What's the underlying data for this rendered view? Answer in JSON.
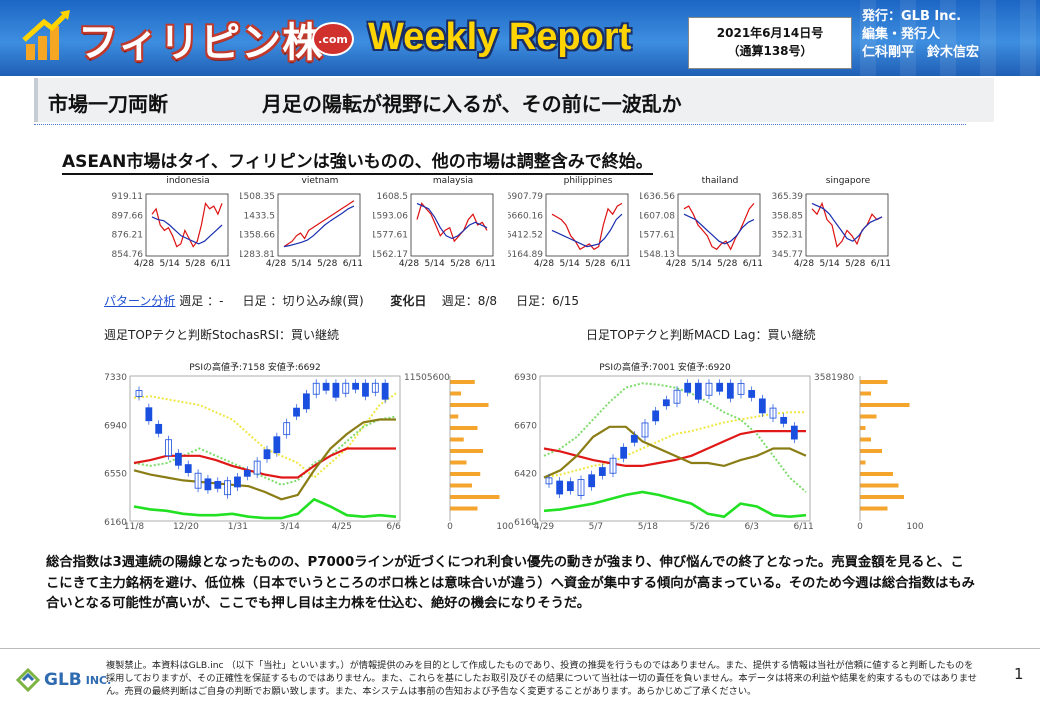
{
  "header": {
    "brand": "フィリピン株",
    "brand_badge": ".com",
    "report_title": "Weekly Report",
    "date_line1": "2021年6月14日号",
    "date_line2": "（通算138号）",
    "publisher_line1": "発行：GLB Inc.",
    "publisher_line2": "編集・発行人",
    "publisher_line3": "仁科剛平　鈴木信宏"
  },
  "headline": {
    "main": "市場一刀両断",
    "sub": "月足の陽転が視野に入るが、その前に一波乱か"
  },
  "section_heading": "ASEAN市場はタイ、フィリピンは強いものの、他の市場は調整含みで終始。",
  "mini_charts": [
    {
      "name": "indonesia",
      "yticks": [
        "919.11",
        "897.66",
        "876.21",
        "854.76"
      ]
    },
    {
      "name": "vietnam",
      "yticks": [
        "1508.35",
        "1433.5",
        "1358.66",
        "1283.81"
      ]
    },
    {
      "name": "malaysia",
      "yticks": [
        "1608.5",
        "1593.06",
        "1577.61",
        "1562.17"
      ]
    },
    {
      "name": "philippines",
      "yticks": [
        "6907.79",
        "6660.16",
        "6412.52",
        "6164.89"
      ]
    },
    {
      "name": "thailand",
      "yticks": [
        "1636.56",
        "1607.08",
        "1577.61",
        "1548.13"
      ]
    },
    {
      "name": "singapore",
      "yticks": [
        "365.39",
        "358.85",
        "352.31",
        "345.77"
      ]
    }
  ],
  "mini_xticks": [
    "4/28",
    "5/14",
    "5/28",
    "6/11"
  ],
  "pattern": {
    "link": "パターン分析",
    "weekly_label": "週足",
    "weekly_value": "：-",
    "daily_label": "日足",
    "daily_value": "：切り込み線(買)",
    "change_label": "変化日",
    "change_weekly": "週足：8/8",
    "change_daily": "日足：6/15"
  },
  "signals": {
    "weekly": "週足TOPテクと判断StochasRSI：買い継続",
    "daily": "日足TOPテクと判断MACD Lag：買い継続"
  },
  "big_charts": {
    "weekly": {
      "psi": "PSIの高値予:7158 安値予:6692",
      "yticks": [
        "7330",
        "6940",
        "6550",
        "6160"
      ],
      "xticks": [
        "11/8",
        "12/20",
        "1/31",
        "3/14",
        "4/25",
        "6/6"
      ],
      "volume_label": "11505600",
      "hist_xticks": [
        "0",
        "100"
      ]
    },
    "daily": {
      "psi": "PSIの高値予:7001 安値予:6920",
      "yticks": [
        "6930",
        "6670",
        "6420",
        "6160"
      ],
      "xticks": [
        "4/29",
        "5/7",
        "5/18",
        "5/26",
        "6/3",
        "6/11"
      ],
      "volume_label": "3581980",
      "hist_xticks": [
        "0",
        "100"
      ]
    }
  },
  "commentary": "総合指数は3週連続の陽線となったものの、P7000ラインが近づくにつれ利食い優先の動きが強まり、伸び悩んでの終了となった。売買金額を見ると、ここにきて主力銘柄を避け、低位株（日本でいうところのボロ株とは意味合いが違う）へ資金が集中する傾向が高まっている。そのため今週は総合指数はもみ合いとなる可能性が高いが、ここでも押し目は主力株を仕込む、絶好の機会になりそうだ。",
  "footer": {
    "logo": "GLB",
    "logo_suffix": "INC.",
    "disclaimer": "複製禁止。本資料はGLB.inc （以下「当社」といいます。）が情報提供のみを目的として作成したものであり、投資の推奨を行うものではありません。また、提供する情報は当社が信頼に値すると判断したものを採用しておりますが、その正確性を保証するものではありません。また、これらを基にしたお取引及びその結果について当社は一切の責任を負いません。本データは将来の利益や結果を約束するものではありません。売買の最終判断はご自身の判断でお願い致します。また、本システムは事前の告知および予告なく変更することがあります。あらかじめご了承ください。",
    "page": "1"
  },
  "colors": {
    "header_blue": "#1c66c4",
    "accent_yellow": "#ffd400",
    "brand_red": "#c0392b"
  }
}
